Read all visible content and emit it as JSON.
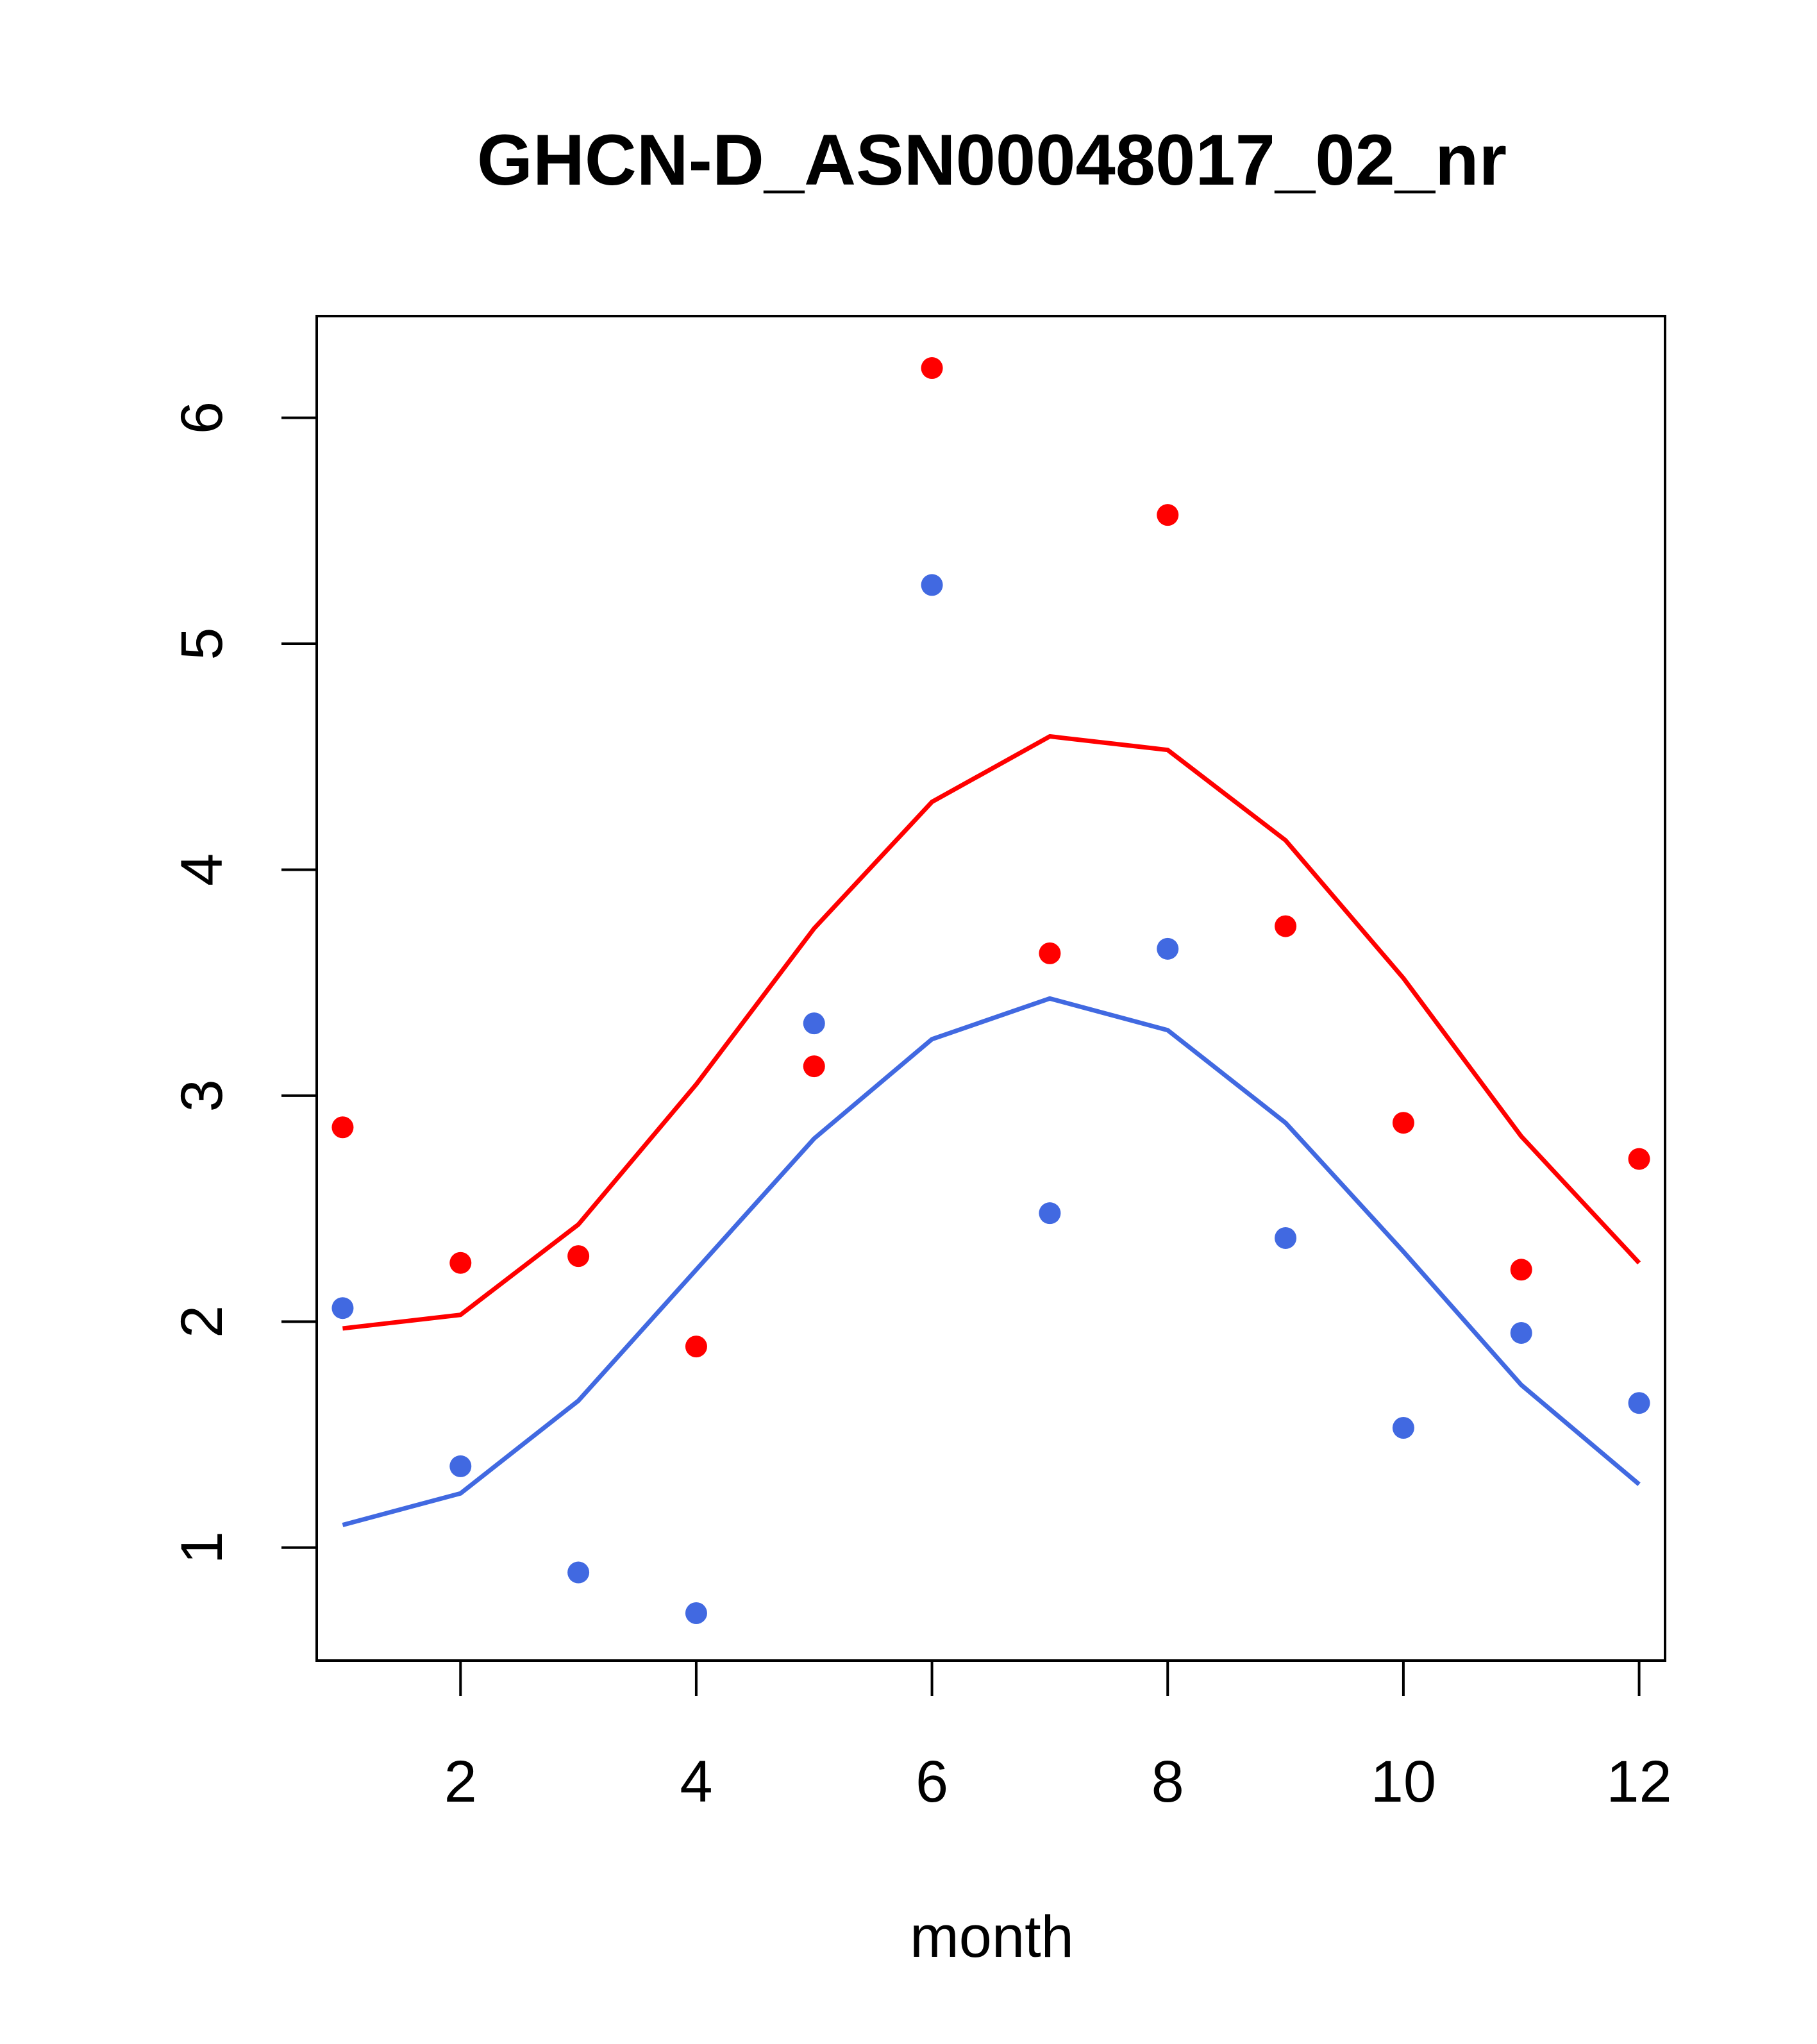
{
  "chart_data": {
    "type": "line",
    "title": "GHCN-D_ASN00048017_02_nr",
    "xlabel": "month",
    "ylabel": "",
    "xlim": [
      0.78,
      12.22
    ],
    "ylim": [
      0.5,
      6.45
    ],
    "x_ticks": [
      2,
      4,
      6,
      8,
      10,
      12
    ],
    "y_ticks": [
      1,
      2,
      3,
      4,
      5,
      6
    ],
    "grid": false,
    "legend": "none",
    "x": [
      1,
      2,
      3,
      4,
      5,
      6,
      7,
      8,
      9,
      10,
      11,
      12
    ],
    "series": [
      {
        "kind": "line",
        "color": "#ff0000",
        "values": [
          1.97,
          2.03,
          2.43,
          3.05,
          3.74,
          4.3,
          4.59,
          4.53,
          4.13,
          3.52,
          2.82,
          2.26
        ]
      },
      {
        "kind": "line",
        "color": "#4169e1",
        "values": [
          1.1,
          1.24,
          1.65,
          2.23,
          2.81,
          3.25,
          3.43,
          3.29,
          2.88,
          2.31,
          1.72,
          1.28
        ]
      },
      {
        "kind": "points",
        "color": "#ff0000",
        "values": [
          2.86,
          2.26,
          2.29,
          1.89,
          3.13,
          6.22,
          3.63,
          5.57,
          3.75,
          2.88,
          2.23,
          2.72
        ]
      },
      {
        "kind": "points",
        "color": "#4169e1",
        "values": [
          2.06,
          1.36,
          0.89,
          0.71,
          3.32,
          5.26,
          2.48,
          3.65,
          2.37,
          1.53,
          1.95,
          1.64
        ]
      }
    ]
  }
}
